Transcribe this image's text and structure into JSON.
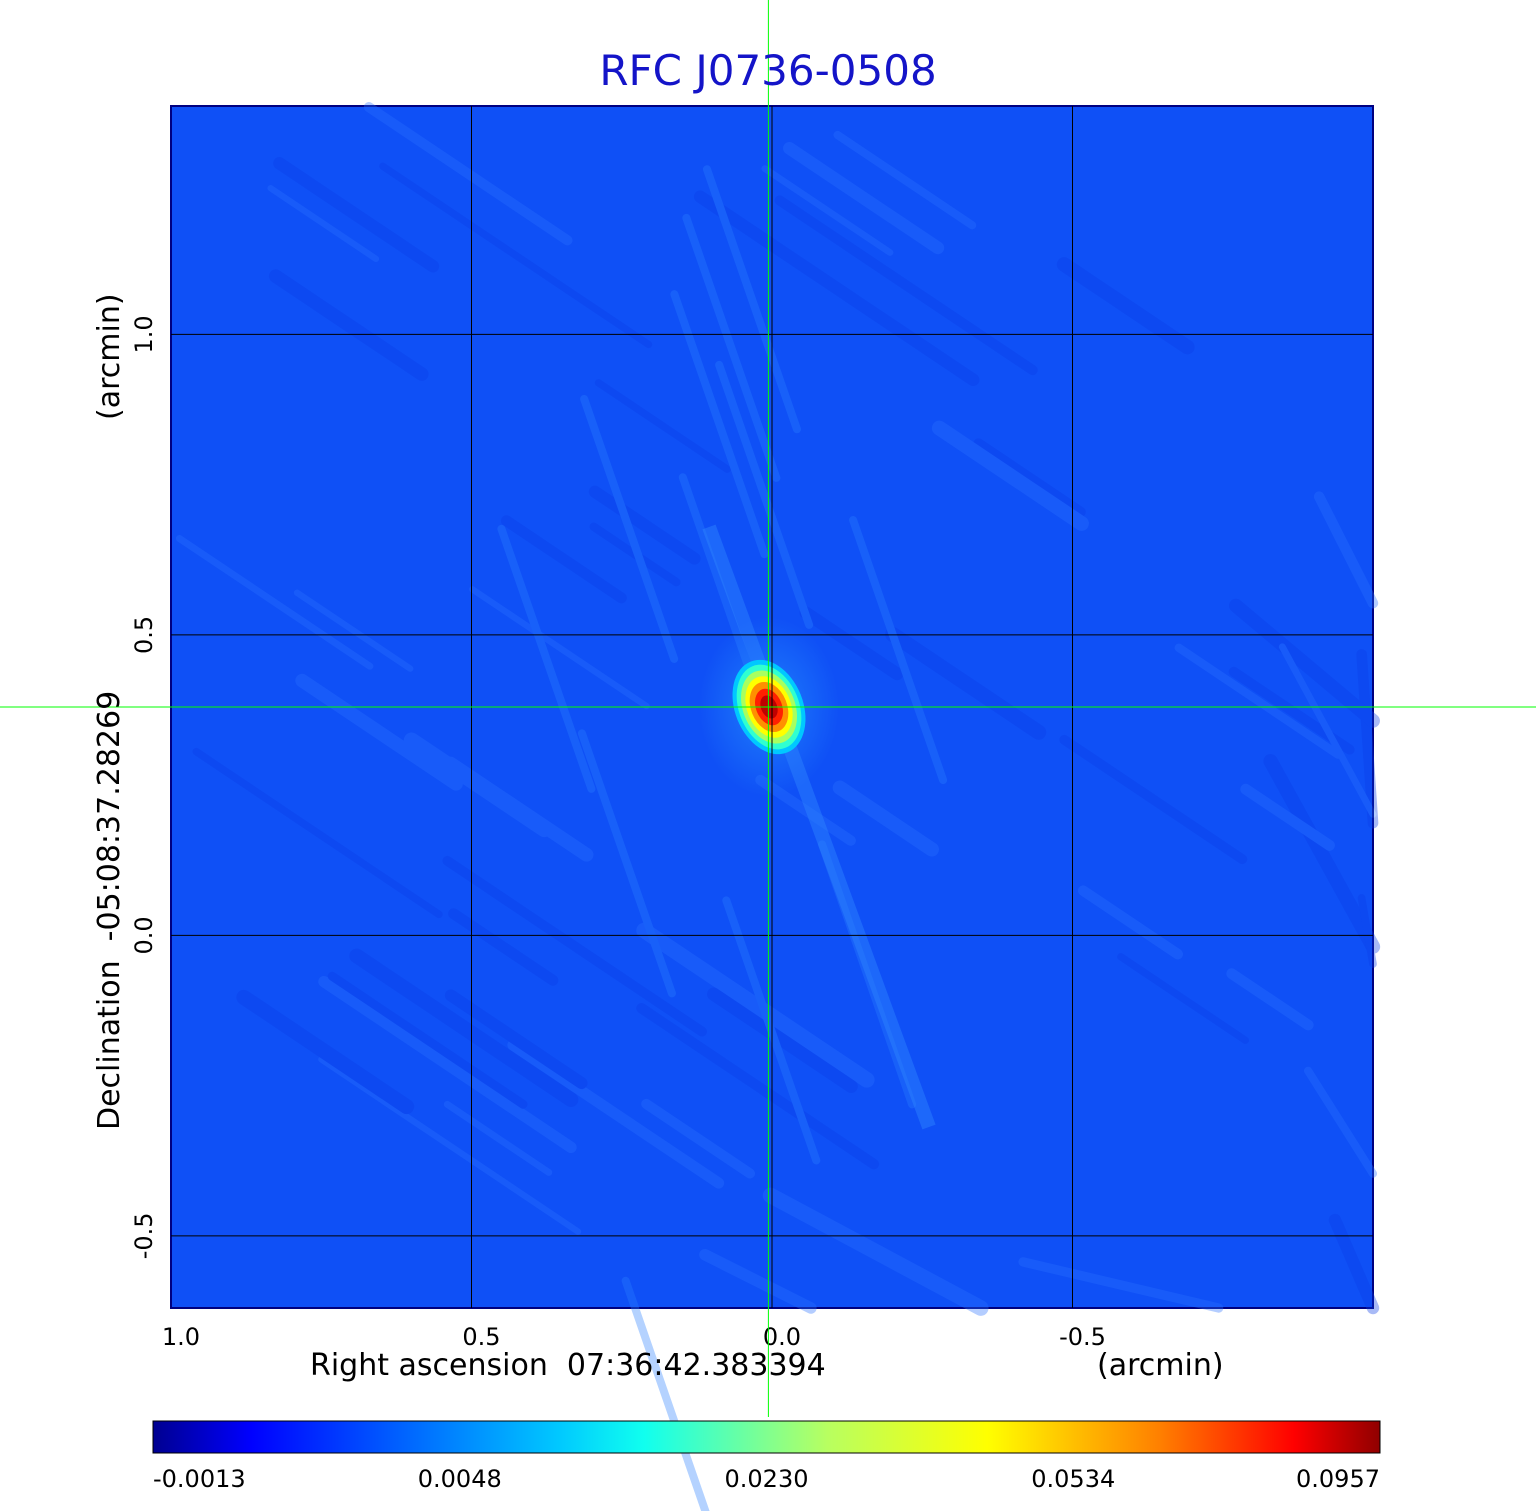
{
  "chart_data": {
    "type": "heatmap",
    "title": "RFC J0736-0508",
    "xlabel": "Right ascension  07:36:42.383394",
    "xunit": "(arcmin)",
    "ylabel": "Declination  -05:08:37.28269",
    "yunit": "(arcmin)",
    "xlim": [
      1.0,
      -1.0
    ],
    "ylim": [
      -0.62,
      1.38
    ],
    "x_ticks": [
      1.0,
      0.5,
      0.0,
      -0.5
    ],
    "x_tick_labels": [
      "1.0",
      "0.5",
      "0.0",
      "-0.5"
    ],
    "y_ticks": [
      1.0,
      0.5,
      0.0,
      -0.5
    ],
    "y_tick_labels": [
      "1.0",
      "0.5",
      "0.0",
      "-0.5"
    ],
    "grid": true,
    "crosshair": {
      "x": 0.006,
      "y": 0.38
    },
    "peak": {
      "x": 0.0,
      "y": 0.38,
      "value": 0.0957
    },
    "colorbar": {
      "tick_values": [
        -0.0013,
        0.0048,
        0.023,
        0.0534,
        0.0957
      ],
      "tick_labels": [
        "-0.0013",
        "0.0048",
        "0.0230",
        "0.0534",
        "0.0957"
      ],
      "colormap": "jet"
    },
    "colors": {
      "title": "#1414c8",
      "crosshair": "#00ff00",
      "grid": "#000000"
    }
  }
}
